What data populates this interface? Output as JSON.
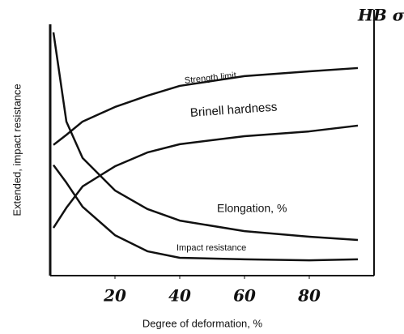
{
  "chart_data": {
    "type": "line",
    "x_label": "Degree of deformation, %",
    "y_label": "Extended, impact resistance",
    "y2_label": "HB σв",
    "x": [
      1,
      5,
      10,
      20,
      30,
      40,
      60,
      80,
      95
    ],
    "series": [
      {
        "name": "Strength limit",
        "color": "#111111",
        "axis": "y2",
        "values": [
          52,
          56,
          61.3,
          67.1,
          71.6,
          75.5,
          79.4,
          81.3,
          82.6
        ]
      },
      {
        "name": "Brinell hardness",
        "color": "#111111",
        "axis": "y2",
        "values": [
          19,
          27,
          35.5,
          43.5,
          49,
          52.3,
          55.5,
          57.4,
          59.7
        ]
      },
      {
        "name": "Elongation, %",
        "color": "#111111",
        "values": [
          96.8,
          61.3,
          46.8,
          33.9,
          26.5,
          21.9,
          17.7,
          15.5,
          14.2
        ]
      },
      {
        "name": "Impact resistance",
        "color": "#111111",
        "values": [
          44,
          37,
          27.4,
          16.1,
          9.7,
          7.1,
          6.5,
          6.1,
          6.5
        ]
      }
    ],
    "xlim": [
      0,
      100
    ],
    "xticks": [
      20,
      40,
      60,
      80
    ],
    "ylim": [
      0,
      100
    ],
    "y2lim": [
      0,
      100
    ]
  }
}
